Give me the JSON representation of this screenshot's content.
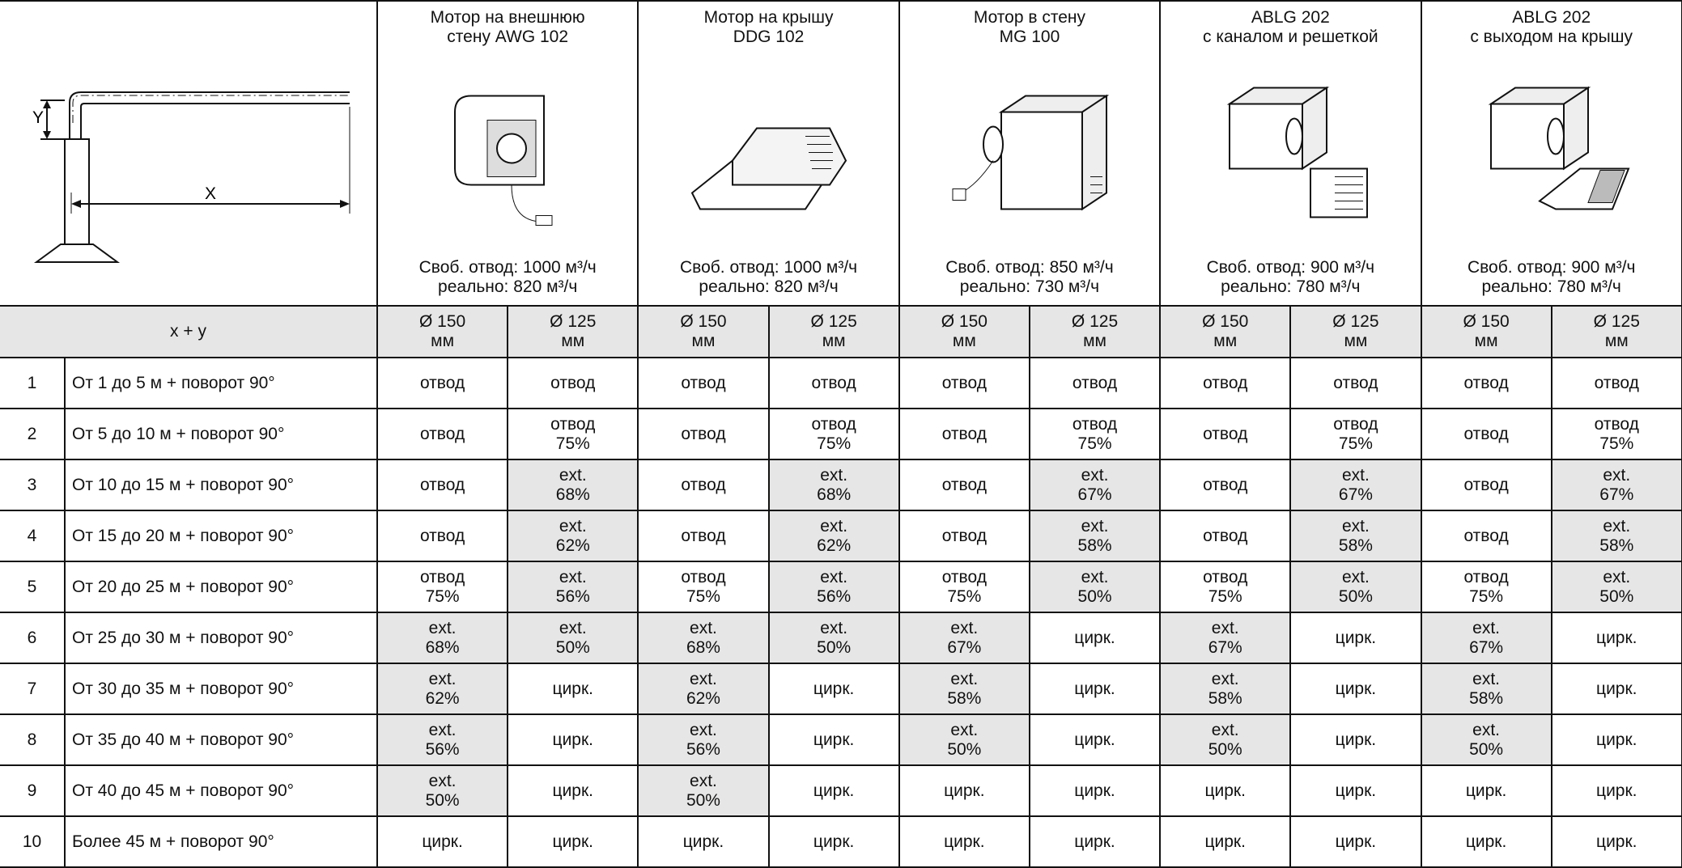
{
  "diagram": {
    "y_label": "Y",
    "x_label": "X"
  },
  "header": {
    "columns": [
      {
        "title": [
          "Мотор на внешнюю",
          "стену AWG 102"
        ],
        "free": "Своб. отвод: 1000 м³/ч",
        "real": "реально: 820 м³/ч"
      },
      {
        "title": [
          "Мотор на крышу",
          "DDG 102"
        ],
        "free": "Своб. отвод: 1000 м³/ч",
        "real": "реально: 820 м³/ч"
      },
      {
        "title": [
          "Мотор в стену",
          "MG 100"
        ],
        "free": "Своб. отвод: 850 м³/ч",
        "real": "реально: 730 м³/ч"
      },
      {
        "title": [
          "ABLG 202",
          "с каналом и решеткой"
        ],
        "free": "Своб. отвод: 900 м³/ч",
        "real": "реально: 780 м³/ч"
      },
      {
        "title": [
          "ABLG 202",
          "с выходом на крышу"
        ],
        "free": "Своб. отвод: 900 м³/ч",
        "real": "реально: 780 м³/ч"
      }
    ]
  },
  "subheader": {
    "label": "x + y",
    "diameters": [
      [
        "Ø 150",
        "мм"
      ],
      [
        "Ø 125",
        "мм"
      ],
      [
        "Ø 150",
        "мм"
      ],
      [
        "Ø 125",
        "мм"
      ],
      [
        "Ø 150",
        "мм"
      ],
      [
        "Ø 125",
        "мм"
      ],
      [
        "Ø 150",
        "мм"
      ],
      [
        "Ø 125",
        "мм"
      ],
      [
        "Ø 150",
        "мм"
      ],
      [
        "Ø 125",
        "мм"
      ]
    ]
  },
  "table": {
    "shade_color": "#e6e6e7",
    "rows": [
      {
        "number": "1",
        "label": "От 1 до 5 м + поворот 90°",
        "cells": [
          {
            "lines": [
              "отвод"
            ]
          },
          {
            "lines": [
              "отвод"
            ]
          },
          {
            "lines": [
              "отвод"
            ]
          },
          {
            "lines": [
              "отвод"
            ]
          },
          {
            "lines": [
              "отвод"
            ]
          },
          {
            "lines": [
              "отвод"
            ]
          },
          {
            "lines": [
              "отвод"
            ]
          },
          {
            "lines": [
              "отвод"
            ]
          },
          {
            "lines": [
              "отвод"
            ]
          },
          {
            "lines": [
              "отвод"
            ]
          }
        ]
      },
      {
        "number": "2",
        "label": "От 5 до 10 м + поворот 90°",
        "cells": [
          {
            "lines": [
              "отвод"
            ]
          },
          {
            "lines": [
              "отвод",
              "75%"
            ]
          },
          {
            "lines": [
              "отвод"
            ]
          },
          {
            "lines": [
              "отвод",
              "75%"
            ]
          },
          {
            "lines": [
              "отвод"
            ]
          },
          {
            "lines": [
              "отвод",
              "75%"
            ]
          },
          {
            "lines": [
              "отвод"
            ]
          },
          {
            "lines": [
              "отвод",
              "75%"
            ]
          },
          {
            "lines": [
              "отвод"
            ]
          },
          {
            "lines": [
              "отвод",
              "75%"
            ]
          }
        ]
      },
      {
        "number": "3",
        "label": "От 10 до 15 м + поворот 90°",
        "cells": [
          {
            "lines": [
              "отвод"
            ]
          },
          {
            "lines": [
              "ext.",
              "68%"
            ],
            "shaded": true
          },
          {
            "lines": [
              "отвод"
            ]
          },
          {
            "lines": [
              "ext.",
              "68%"
            ],
            "shaded": true
          },
          {
            "lines": [
              "отвод"
            ]
          },
          {
            "lines": [
              "ext.",
              "67%"
            ],
            "shaded": true
          },
          {
            "lines": [
              "отвод"
            ]
          },
          {
            "lines": [
              "ext.",
              "67%"
            ],
            "shaded": true
          },
          {
            "lines": [
              "отвод"
            ]
          },
          {
            "lines": [
              "ext.",
              "67%"
            ],
            "shaded": true
          }
        ]
      },
      {
        "number": "4",
        "label": "От 15 до 20 м + поворот 90°",
        "cells": [
          {
            "lines": [
              "отвод"
            ]
          },
          {
            "lines": [
              "ext.",
              "62%"
            ],
            "shaded": true
          },
          {
            "lines": [
              "отвод"
            ]
          },
          {
            "lines": [
              "ext.",
              "62%"
            ],
            "shaded": true
          },
          {
            "lines": [
              "отвод"
            ]
          },
          {
            "lines": [
              "ext.",
              "58%"
            ],
            "shaded": true
          },
          {
            "lines": [
              "отвод"
            ]
          },
          {
            "lines": [
              "ext.",
              "58%"
            ],
            "shaded": true
          },
          {
            "lines": [
              "отвод"
            ]
          },
          {
            "lines": [
              "ext.",
              "58%"
            ],
            "shaded": true
          }
        ]
      },
      {
        "number": "5",
        "label": "От 20 до 25 м + поворот 90°",
        "cells": [
          {
            "lines": [
              "отвод",
              "75%"
            ]
          },
          {
            "lines": [
              "ext.",
              "56%"
            ],
            "shaded": true
          },
          {
            "lines": [
              "отвод",
              "75%"
            ]
          },
          {
            "lines": [
              "ext.",
              "56%"
            ],
            "shaded": true
          },
          {
            "lines": [
              "отвод",
              "75%"
            ]
          },
          {
            "lines": [
              "ext.",
              "50%"
            ],
            "shaded": true
          },
          {
            "lines": [
              "отвод",
              "75%"
            ]
          },
          {
            "lines": [
              "ext.",
              "50%"
            ],
            "shaded": true
          },
          {
            "lines": [
              "отвод",
              "75%"
            ]
          },
          {
            "lines": [
              "ext.",
              "50%"
            ],
            "shaded": true
          }
        ]
      },
      {
        "number": "6",
        "label": "От 25 до 30 м + поворот 90°",
        "cells": [
          {
            "lines": [
              "ext.",
              "68%"
            ],
            "shaded": true
          },
          {
            "lines": [
              "ext.",
              "50%"
            ],
            "shaded": true
          },
          {
            "lines": [
              "ext.",
              "68%"
            ],
            "shaded": true
          },
          {
            "lines": [
              "ext.",
              "50%"
            ],
            "shaded": true
          },
          {
            "lines": [
              "ext.",
              "67%"
            ],
            "shaded": true
          },
          {
            "lines": [
              "цирк."
            ]
          },
          {
            "lines": [
              "ext.",
              "67%"
            ],
            "shaded": true
          },
          {
            "lines": [
              "цирк."
            ]
          },
          {
            "lines": [
              "ext.",
              "67%"
            ],
            "shaded": true
          },
          {
            "lines": [
              "цирк."
            ]
          }
        ]
      },
      {
        "number": "7",
        "label": "От 30 до 35 м + поворот 90°",
        "cells": [
          {
            "lines": [
              "ext.",
              "62%"
            ],
            "shaded": true
          },
          {
            "lines": [
              "цирк."
            ]
          },
          {
            "lines": [
              "ext.",
              "62%"
            ],
            "shaded": true
          },
          {
            "lines": [
              "цирк."
            ]
          },
          {
            "lines": [
              "ext.",
              "58%"
            ],
            "shaded": true
          },
          {
            "lines": [
              "цирк."
            ]
          },
          {
            "lines": [
              "ext.",
              "58%"
            ],
            "shaded": true
          },
          {
            "lines": [
              "цирк."
            ]
          },
          {
            "lines": [
              "ext.",
              "58%"
            ],
            "shaded": true
          },
          {
            "lines": [
              "цирк."
            ]
          }
        ]
      },
      {
        "number": "8",
        "label": "От 35 до 40 м + поворот 90°",
        "cells": [
          {
            "lines": [
              "ext.",
              "56%"
            ],
            "shaded": true
          },
          {
            "lines": [
              "цирк."
            ]
          },
          {
            "lines": [
              "ext.",
              "56%"
            ],
            "shaded": true
          },
          {
            "lines": [
              "цирк."
            ]
          },
          {
            "lines": [
              "ext.",
              "50%"
            ],
            "shaded": true
          },
          {
            "lines": [
              "цирк."
            ]
          },
          {
            "lines": [
              "ext.",
              "50%"
            ],
            "shaded": true
          },
          {
            "lines": [
              "цирк."
            ]
          },
          {
            "lines": [
              "ext.",
              "50%"
            ],
            "shaded": true
          },
          {
            "lines": [
              "цирк."
            ]
          }
        ]
      },
      {
        "number": "9",
        "label": "От 40 до 45 м + поворот 90°",
        "cells": [
          {
            "lines": [
              "ext.",
              "50%"
            ],
            "shaded": true
          },
          {
            "lines": [
              "цирк."
            ]
          },
          {
            "lines": [
              "ext.",
              "50%"
            ],
            "shaded": true
          },
          {
            "lines": [
              "цирк."
            ]
          },
          {
            "lines": [
              "цирк."
            ]
          },
          {
            "lines": [
              "цирк."
            ]
          },
          {
            "lines": [
              "цирк."
            ]
          },
          {
            "lines": [
              "цирк."
            ]
          },
          {
            "lines": [
              "цирк."
            ]
          },
          {
            "lines": [
              "цирк."
            ]
          }
        ]
      },
      {
        "number": "10",
        "label": "Более 45 м + поворот 90°",
        "cells": [
          {
            "lines": [
              "цирк."
            ]
          },
          {
            "lines": [
              "цирк."
            ]
          },
          {
            "lines": [
              "цирк."
            ]
          },
          {
            "lines": [
              "цирк."
            ]
          },
          {
            "lines": [
              "цирк."
            ]
          },
          {
            "lines": [
              "цирк."
            ]
          },
          {
            "lines": [
              "цирк."
            ]
          },
          {
            "lines": [
              "цирк."
            ]
          },
          {
            "lines": [
              "цирк."
            ]
          },
          {
            "lines": [
              "цирк."
            ]
          }
        ]
      }
    ]
  }
}
